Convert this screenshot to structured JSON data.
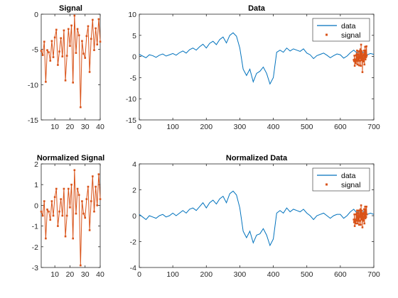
{
  "chart_data": [
    {
      "type": "line",
      "title": "Signal",
      "xlabel": "",
      "ylabel": "",
      "xlim": [
        1,
        40
      ],
      "ylim": [
        -15,
        0
      ],
      "xticks": [
        10,
        20,
        30,
        40
      ],
      "yticks": [
        -15,
        -10,
        -5,
        0
      ],
      "grid": false,
      "series": [
        {
          "color": "#D95319",
          "marker": "square",
          "x": [
            1,
            2,
            3,
            4,
            5,
            6,
            7,
            8,
            9,
            10,
            11,
            12,
            13,
            14,
            15,
            16,
            17,
            18,
            19,
            20,
            21,
            22,
            23,
            24,
            25,
            26,
            27,
            28,
            29,
            30,
            31,
            32,
            33,
            34,
            35,
            36,
            37,
            38,
            39,
            40
          ],
          "values": [
            -5.2,
            -5.8,
            -3.9,
            -9.6,
            -5.1,
            -5.4,
            -6.6,
            -3.8,
            -6.1,
            -3.3,
            -2.2,
            -7.2,
            -5.3,
            -3.4,
            -6.0,
            -2.3,
            -9.4,
            -5.9,
            -2.1,
            -4.5,
            -1.6,
            -9.7,
            -0.2,
            -5.5,
            -2.1,
            -3.0,
            -13.2,
            -3.8,
            -5.6,
            -6.2,
            -3.1,
            -1.7,
            -8.2,
            -3.5,
            -0.8,
            -5.1,
            -2.0,
            -4.3,
            -0.7,
            -3.9
          ]
        }
      ]
    },
    {
      "type": "line",
      "title": "Data",
      "xlabel": "",
      "ylabel": "",
      "xlim": [
        0,
        700
      ],
      "ylim": [
        -15,
        10
      ],
      "xticks": [
        0,
        100,
        200,
        300,
        400,
        500,
        600,
        700
      ],
      "yticks": [
        -15,
        -10,
        -5,
        0,
        5,
        10
      ],
      "grid": false,
      "legend": "top-right",
      "series": [
        {
          "name": "data",
          "color": "#0072BD",
          "x": [
            0,
            10,
            20,
            30,
            40,
            50,
            60,
            70,
            80,
            90,
            100,
            110,
            120,
            130,
            140,
            150,
            160,
            170,
            180,
            190,
            200,
            210,
            220,
            230,
            240,
            250,
            260,
            270,
            280,
            290,
            300,
            310,
            320,
            330,
            340,
            350,
            360,
            370,
            380,
            390,
            400,
            410,
            420,
            430,
            440,
            450,
            460,
            470,
            480,
            490,
            500,
            510,
            520,
            530,
            540,
            550,
            560,
            570,
            580,
            590,
            600,
            610,
            620,
            630,
            640,
            650,
            660,
            670,
            680,
            690,
            700
          ],
          "values": [
            0.5,
            0.1,
            -0.3,
            0.4,
            0.2,
            -0.2,
            0.3,
            0.6,
            0.1,
            0.4,
            0.7,
            0.3,
            0.9,
            1.3,
            0.8,
            1.6,
            2.0,
            1.5,
            2.3,
            2.9,
            2.0,
            3.1,
            3.6,
            2.8,
            4.0,
            4.6,
            3.2,
            5.0,
            5.6,
            4.8,
            2.0,
            -3.0,
            -4.5,
            -3.0,
            -6.0,
            -4.0,
            -3.5,
            -2.5,
            -4.0,
            -6.5,
            -5.0,
            1.0,
            1.5,
            1.0,
            2.0,
            1.3,
            1.8,
            1.5,
            1.2,
            1.8,
            0.8,
            0.4,
            -0.5,
            0.2,
            0.5,
            0.8,
            0.3,
            -0.3,
            0.2,
            0.6,
            0.4,
            -0.4,
            0.1,
            0.9,
            1.5,
            0.8,
            1.4,
            0.9,
            0.4,
            0.7,
            0.5
          ]
        },
        {
          "name": "signal",
          "color": "#D95319",
          "marker": "square",
          "x": [
            640,
            641,
            642,
            643,
            644,
            645,
            646,
            647,
            648,
            649,
            650,
            651,
            652,
            653,
            654,
            655,
            656,
            657,
            658,
            659,
            660,
            661,
            662,
            663,
            664,
            665,
            666,
            667,
            668,
            669,
            670,
            671,
            672,
            673,
            674,
            675,
            676,
            677,
            678,
            679
          ],
          "values": [
            -0.8,
            -1.1,
            0.2,
            -2.2,
            -0.7,
            -0.9,
            -1.6,
            0.3,
            -1.1,
            0.6,
            1.4,
            -1.9,
            -0.8,
            0.5,
            -1.0,
            1.2,
            -2.1,
            -1.0,
            1.3,
            -0.4,
            1.7,
            -2.2,
            2.8,
            -0.9,
            1.3,
            0.7,
            -3.7,
            0.2,
            -0.9,
            -1.2,
            0.5,
            1.4,
            -1.9,
            0.4,
            2.3,
            -0.7,
            1.4,
            -0.2,
            2.4,
            0.2
          ]
        }
      ]
    },
    {
      "type": "line",
      "title": "Normalized Signal",
      "xlabel": "",
      "ylabel": "",
      "xlim": [
        1,
        40
      ],
      "ylim": [
        -3,
        2
      ],
      "xticks": [
        10,
        20,
        30,
        40
      ],
      "yticks": [
        -3,
        -2,
        -1,
        0,
        1,
        2
      ],
      "grid": false,
      "series": [
        {
          "color": "#D95319",
          "marker": "square",
          "x": [
            1,
            2,
            3,
            4,
            5,
            6,
            7,
            8,
            9,
            10,
            11,
            12,
            13,
            14,
            15,
            16,
            17,
            18,
            19,
            20,
            21,
            22,
            23,
            24,
            25,
            26,
            27,
            28,
            29,
            30,
            31,
            32,
            33,
            34,
            35,
            36,
            37,
            38,
            39,
            40
          ],
          "values": [
            -0.3,
            -0.5,
            0.2,
            -1.6,
            -0.2,
            -0.3,
            -0.7,
            0.2,
            -0.5,
            0.4,
            0.8,
            -1.0,
            -0.3,
            0.3,
            -0.5,
            0.8,
            -1.5,
            -0.5,
            0.8,
            -0.1,
            1.0,
            -1.6,
            1.7,
            -0.4,
            0.8,
            0.5,
            -2.9,
            0.2,
            -0.4,
            -0.6,
            0.3,
            0.9,
            -1.2,
            0.2,
            1.4,
            -0.3,
            0.9,
            0.0,
            1.5,
            0.3
          ]
        }
      ]
    },
    {
      "type": "line",
      "title": "Normalized Data",
      "xlabel": "",
      "ylabel": "",
      "xlim": [
        0,
        700
      ],
      "ylim": [
        -4,
        4
      ],
      "xticks": [
        0,
        100,
        200,
        300,
        400,
        500,
        600,
        700
      ],
      "yticks": [
        -4,
        -2,
        0,
        2,
        4
      ],
      "grid": false,
      "legend": "top-right",
      "series": [
        {
          "name": "data",
          "color": "#0072BD",
          "x": [
            0,
            10,
            20,
            30,
            40,
            50,
            60,
            70,
            80,
            90,
            100,
            110,
            120,
            130,
            140,
            150,
            160,
            170,
            180,
            190,
            200,
            210,
            220,
            230,
            240,
            250,
            260,
            270,
            280,
            290,
            300,
            310,
            320,
            330,
            340,
            350,
            360,
            370,
            380,
            390,
            400,
            410,
            420,
            430,
            440,
            450,
            460,
            470,
            480,
            490,
            500,
            510,
            520,
            530,
            540,
            550,
            560,
            570,
            580,
            590,
            600,
            610,
            620,
            630,
            640,
            650,
            660,
            670,
            680,
            690,
            700
          ],
          "values": [
            0.1,
            -0.1,
            -0.3,
            0.0,
            -0.1,
            -0.2,
            0.0,
            0.1,
            -0.1,
            0.0,
            0.2,
            0.0,
            0.2,
            0.4,
            0.2,
            0.5,
            0.6,
            0.4,
            0.7,
            1.0,
            0.6,
            1.0,
            1.2,
            0.9,
            1.3,
            1.5,
            1.0,
            1.7,
            1.9,
            1.6,
            0.6,
            -1.2,
            -1.7,
            -1.2,
            -2.1,
            -1.5,
            -1.4,
            -1.0,
            -1.5,
            -2.3,
            -1.8,
            0.2,
            0.4,
            0.2,
            0.6,
            0.3,
            0.5,
            0.4,
            0.3,
            0.5,
            0.2,
            0.0,
            -0.3,
            0.0,
            0.1,
            0.2,
            0.0,
            -0.2,
            0.0,
            0.1,
            0.1,
            -0.2,
            0.0,
            0.3,
            0.5,
            0.2,
            0.5,
            0.3,
            0.1,
            0.2,
            0.1
          ]
        },
        {
          "name": "signal",
          "color": "#D95319",
          "marker": "square",
          "x": [
            640,
            641,
            642,
            643,
            644,
            645,
            646,
            647,
            648,
            649,
            650,
            651,
            652,
            653,
            654,
            655,
            656,
            657,
            658,
            659,
            660,
            661,
            662,
            663,
            664,
            665,
            666,
            667,
            668,
            669,
            670,
            671,
            672,
            673,
            674,
            675,
            676,
            677,
            678,
            679
          ],
          "values": [
            -0.3,
            -0.5,
            0.1,
            -0.8,
            -0.3,
            -0.3,
            -0.6,
            0.1,
            -0.4,
            0.2,
            0.4,
            -0.6,
            -0.3,
            0.2,
            -0.4,
            0.4,
            -0.7,
            -0.4,
            0.4,
            -0.1,
            0.5,
            -0.7,
            0.8,
            -0.3,
            0.4,
            0.2,
            -0.9,
            0.1,
            -0.3,
            -0.4,
            0.2,
            0.5,
            -0.6,
            0.1,
            0.7,
            -0.2,
            0.5,
            -0.1,
            0.7,
            0.1
          ]
        }
      ]
    }
  ]
}
